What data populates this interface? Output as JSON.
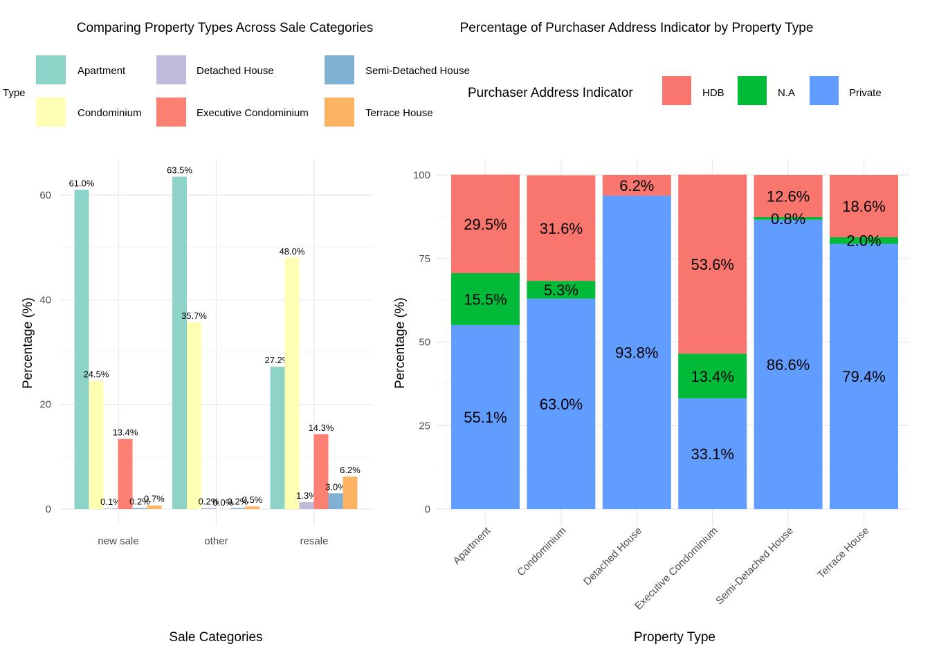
{
  "chart_data": [
    {
      "type": "bar",
      "title": "Comparing Property Types Across Sale Categories",
      "xlabel": "Sale Categories",
      "ylabel": "Percentage (%)",
      "ylim": [
        0,
        66
      ],
      "yticks": [
        0,
        20,
        40,
        60
      ],
      "grid": true,
      "legend": {
        "title": "Type",
        "placement": "top",
        "entries": [
          {
            "label": "Apartment",
            "color": "#8DD3C7"
          },
          {
            "label": "Detached House",
            "color": "#BEBADA"
          },
          {
            "label": "Semi-Detached House",
            "color": "#80B1D3"
          },
          {
            "label": "Condominium",
            "color": "#FFFFB3"
          },
          {
            "label": "Executive Condominium",
            "color": "#FB8072"
          },
          {
            "label": "Terrace House",
            "color": "#FDB462"
          }
        ]
      },
      "categories": [
        "new sale",
        "other",
        "resale"
      ],
      "series": [
        {
          "name": "Apartment",
          "color": "#8DD3C7",
          "values": [
            61.0,
            63.5,
            27.2
          ],
          "labels": [
            "61.0%",
            "63.5%",
            "27.2%"
          ]
        },
        {
          "name": "Condominium",
          "color": "#FFFFB3",
          "values": [
            24.5,
            35.7,
            48.0
          ],
          "labels": [
            "24.5%",
            "35.7%",
            "48.0%"
          ]
        },
        {
          "name": "Detached House",
          "color": "#BEBADA",
          "values": [
            0.1,
            0.2,
            1.3
          ],
          "labels": [
            "0.1%",
            "0.2%",
            "1.3%"
          ]
        },
        {
          "name": "Executive Condominium",
          "color": "#FB8072",
          "values": [
            13.4,
            0.0,
            14.3
          ],
          "labels": [
            "13.4%",
            "0.0%",
            "14.3%"
          ]
        },
        {
          "name": "Semi-Detached House",
          "color": "#80B1D3",
          "values": [
            0.2,
            0.2,
            3.0
          ],
          "labels": [
            "0.2%",
            "0.2%",
            "3.0%"
          ]
        },
        {
          "name": "Terrace House",
          "color": "#FDB462",
          "values": [
            0.7,
            0.5,
            6.2
          ],
          "labels": [
            "0.7%",
            "0.5%",
            "6.2%"
          ]
        }
      ]
    },
    {
      "type": "bar",
      "stacked": true,
      "title": "Percentage of Purchaser Address Indicator by Property Type",
      "xlabel": "Property Type",
      "ylabel": "Percentage (%)",
      "ylim": [
        0,
        100
      ],
      "yticks": [
        0,
        25,
        50,
        75,
        100
      ],
      "grid": true,
      "legend": {
        "title": "Purchaser Address Indicator",
        "placement": "top",
        "entries": [
          {
            "label": "HDB",
            "color": "#F8766D"
          },
          {
            "label": "N.A",
            "color": "#00BA38"
          },
          {
            "label": "Private",
            "color": "#619CFF"
          }
        ]
      },
      "categories": [
        "Apartment",
        "Condominium",
        "Detached House",
        "Executive Condominium",
        "Semi-Detached House",
        "Terrace House"
      ],
      "series": [
        {
          "name": "Private",
          "color": "#619CFF",
          "values": [
            55.1,
            63.0,
            93.8,
            33.1,
            86.6,
            79.4
          ],
          "labels": [
            "55.1%",
            "63.0%",
            "93.8%",
            "33.1%",
            "86.6%",
            "79.4%"
          ]
        },
        {
          "name": "N.A",
          "color": "#00BA38",
          "values": [
            15.5,
            5.3,
            0.0,
            13.4,
            0.8,
            2.0
          ],
          "labels": [
            "15.5%",
            "5.3%",
            "",
            "13.4%",
            "0.8%",
            "2.0%"
          ]
        },
        {
          "name": "HDB",
          "color": "#F8766D",
          "values": [
            29.5,
            31.6,
            6.2,
            53.6,
            12.6,
            18.6
          ],
          "labels": [
            "29.5%",
            "31.6%",
            "6.2%",
            "53.6%",
            "12.6%",
            "18.6%"
          ]
        }
      ]
    }
  ]
}
